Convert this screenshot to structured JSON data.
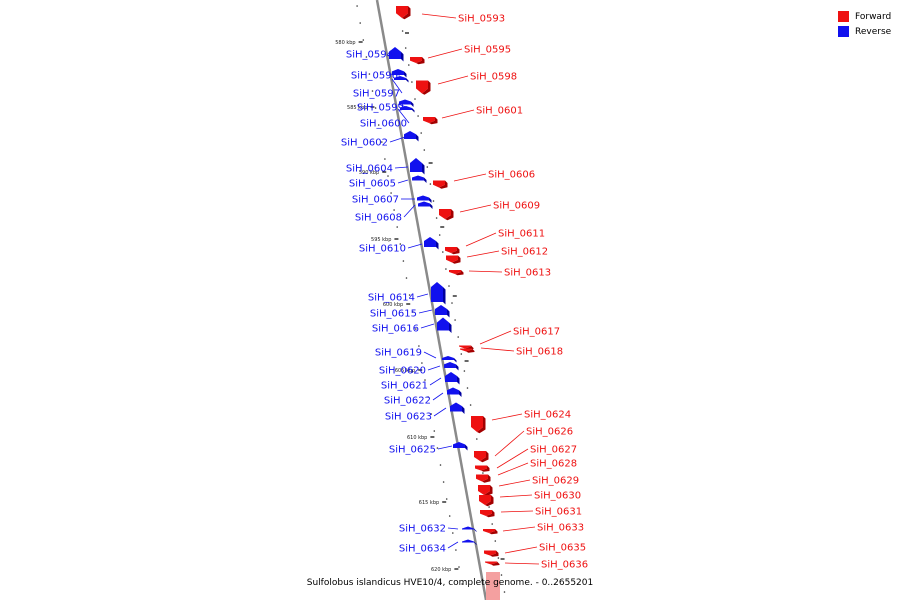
{
  "caption": "Sulfolobus islandicus HVE10/4, complete genome. - 0..2655201",
  "legend": {
    "forward_label": "Forward",
    "reverse_label": "Reverse",
    "forward_color": "#ee1111",
    "reverse_color": "#1111ee"
  },
  "colors": {
    "forward": "#ee1111",
    "forward_dark": "#a30000",
    "reverse": "#1111ee",
    "reverse_dark": "#0000a0",
    "axis": "#8a8a8a",
    "faded_gene": "#f4a0a0"
  },
  "ticks": [
    {
      "label": "580 kbp"
    },
    {
      "label": "585 kbp"
    },
    {
      "label": "590 kbp"
    },
    {
      "label": "595 kbp"
    },
    {
      "label": "600 kbp"
    },
    {
      "label": "605 kbp"
    },
    {
      "label": "610 kbp"
    },
    {
      "label": "615 kbp"
    },
    {
      "label": "620 kbp"
    }
  ],
  "genes": [
    {
      "name": "SiH_0593",
      "strand": "forward"
    },
    {
      "name": "SiH_0594",
      "strand": "reverse"
    },
    {
      "name": "SiH_0595",
      "strand": "forward"
    },
    {
      "name": "SiH_0596",
      "strand": "reverse"
    },
    {
      "name": "SiH_0597",
      "strand": "reverse"
    },
    {
      "name": "SiH_0598",
      "strand": "forward"
    },
    {
      "name": "SiH_0599",
      "strand": "reverse"
    },
    {
      "name": "SiH_0600",
      "strand": "reverse"
    },
    {
      "name": "SiH_0601",
      "strand": "forward"
    },
    {
      "name": "SiH_0602",
      "strand": "reverse"
    },
    {
      "name": "SiH_0604",
      "strand": "reverse"
    },
    {
      "name": "SiH_0605",
      "strand": "reverse"
    },
    {
      "name": "SiH_0606",
      "strand": "forward"
    },
    {
      "name": "SiH_0607",
      "strand": "reverse"
    },
    {
      "name": "SiH_0608",
      "strand": "reverse"
    },
    {
      "name": "SiH_0609",
      "strand": "forward"
    },
    {
      "name": "SiH_0610",
      "strand": "reverse"
    },
    {
      "name": "SiH_0611",
      "strand": "forward"
    },
    {
      "name": "SiH_0612",
      "strand": "forward"
    },
    {
      "name": "SiH_0613",
      "strand": "forward"
    },
    {
      "name": "SiH_0614",
      "strand": "reverse"
    },
    {
      "name": "SiH_0615",
      "strand": "reverse"
    },
    {
      "name": "SiH_0616",
      "strand": "reverse"
    },
    {
      "name": "SiH_0617",
      "strand": "forward"
    },
    {
      "name": "SiH_0618",
      "strand": "forward"
    },
    {
      "name": "SiH_0619",
      "strand": "reverse"
    },
    {
      "name": "SiH_0620",
      "strand": "reverse"
    },
    {
      "name": "SiH_0621",
      "strand": "reverse"
    },
    {
      "name": "SiH_0622",
      "strand": "reverse"
    },
    {
      "name": "SiH_0623",
      "strand": "reverse"
    },
    {
      "name": "SiH_0624",
      "strand": "forward"
    },
    {
      "name": "SiH_0625",
      "strand": "reverse"
    },
    {
      "name": "SiH_0626",
      "strand": "forward"
    },
    {
      "name": "SiH_0627",
      "strand": "forward"
    },
    {
      "name": "SiH_0628",
      "strand": "forward"
    },
    {
      "name": "SiH_0629",
      "strand": "forward"
    },
    {
      "name": "SiH_0630",
      "strand": "forward"
    },
    {
      "name": "SiH_0631",
      "strand": "forward"
    },
    {
      "name": "SiH_0632",
      "strand": "reverse"
    },
    {
      "name": "SiH_0633",
      "strand": "forward"
    },
    {
      "name": "SiH_0634",
      "strand": "reverse"
    },
    {
      "name": "SiH_0635",
      "strand": "forward"
    },
    {
      "name": "SiH_0636",
      "strand": "forward"
    }
  ]
}
